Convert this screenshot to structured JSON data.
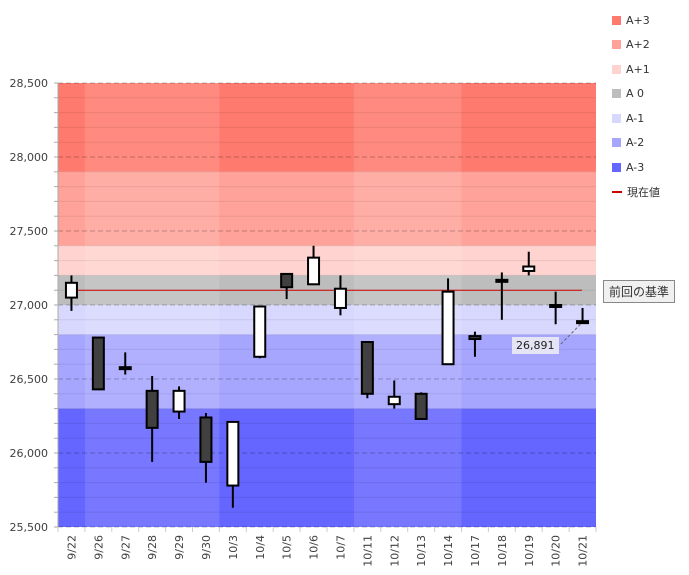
{
  "chart_data": {
    "type": "candlestick",
    "title": "",
    "xlabel": "",
    "ylabel": "",
    "ylim": [
      25500,
      28500
    ],
    "yticks": [
      25500,
      26000,
      26500,
      27000,
      27500,
      28000,
      28500
    ],
    "ytick_labels": [
      "25,500",
      "26,000",
      "26,500",
      "27,000",
      "27,500",
      "28,000",
      "28,500"
    ],
    "categories": [
      "9/22",
      "9/26",
      "9/27",
      "9/28",
      "9/29",
      "9/30",
      "10/3",
      "10/4",
      "10/5",
      "10/6",
      "10/7",
      "10/11",
      "10/12",
      "10/13",
      "10/14",
      "10/17",
      "10/18",
      "10/19",
      "10/20",
      "10/21"
    ],
    "candles": [
      {
        "date": "9/22",
        "open": 27050,
        "high": 27200,
        "low": 26960,
        "close": 27150
      },
      {
        "date": "9/26",
        "open": 26780,
        "high": 26780,
        "low": 26430,
        "close": 26430
      },
      {
        "date": "9/27",
        "open": 26580,
        "high": 26680,
        "low": 26530,
        "close": 26570
      },
      {
        "date": "9/28",
        "open": 26420,
        "high": 26520,
        "low": 25940,
        "close": 26170
      },
      {
        "date": "9/29",
        "open": 26280,
        "high": 26450,
        "low": 26230,
        "close": 26420
      },
      {
        "date": "9/30",
        "open": 26240,
        "high": 26270,
        "low": 25800,
        "close": 25940
      },
      {
        "date": "10/3",
        "open": 25780,
        "high": 26210,
        "low": 25630,
        "close": 26210
      },
      {
        "date": "10/4",
        "open": 26650,
        "high": 26990,
        "low": 26640,
        "close": 26990
      },
      {
        "date": "10/5",
        "open": 27210,
        "high": 27210,
        "low": 27040,
        "close": 27120
      },
      {
        "date": "10/6",
        "open": 27140,
        "high": 27400,
        "low": 27140,
        "close": 27320
      },
      {
        "date": "10/7",
        "open": 26980,
        "high": 27200,
        "low": 26930,
        "close": 27110
      },
      {
        "date": "10/11",
        "open": 26750,
        "high": 26750,
        "low": 26370,
        "close": 26400
      },
      {
        "date": "10/12",
        "open": 26330,
        "high": 26490,
        "low": 26300,
        "close": 26380
      },
      {
        "date": "10/13",
        "open": 26400,
        "high": 26410,
        "low": 26230,
        "close": 26230
      },
      {
        "date": "10/14",
        "open": 26600,
        "high": 27180,
        "low": 26600,
        "close": 27090
      },
      {
        "date": "10/17",
        "open": 26790,
        "high": 26820,
        "low": 26650,
        "close": 26770
      },
      {
        "date": "10/18",
        "open": 27160,
        "high": 27220,
        "low": 26900,
        "close": 27170
      },
      {
        "date": "10/19",
        "open": 27230,
        "high": 27360,
        "low": 27200,
        "close": 27260
      },
      {
        "date": "10/20",
        "open": 26990,
        "high": 27090,
        "low": 26870,
        "close": 27000
      },
      {
        "date": "10/21",
        "open": 26890,
        "high": 26980,
        "low": 26880,
        "close": 26891
      }
    ],
    "bands": [
      {
        "name": "A+3",
        "from": 27900,
        "to": 28500,
        "color": "#ff7a6e"
      },
      {
        "name": "A+2",
        "from": 27400,
        "to": 27900,
        "color": "#ffa39a"
      },
      {
        "name": "A+1",
        "from": 27200,
        "to": 27400,
        "color": "#ffd3cf"
      },
      {
        "name": "A 0",
        "from": 27000,
        "to": 27200,
        "color": "#bdbdbd"
      },
      {
        "name": "A-1",
        "from": 26800,
        "to": 27000,
        "color": "#d8d8ff"
      },
      {
        "name": "A-2",
        "from": 26300,
        "to": 26800,
        "color": "#a6a6ff"
      },
      {
        "name": "A-3",
        "from": 25500,
        "to": 26300,
        "color": "#6565ff"
      }
    ],
    "week_shading_groups": [
      [
        0,
        0
      ],
      [
        1,
        5
      ],
      [
        6,
        10
      ],
      [
        11,
        14
      ],
      [
        15,
        19
      ]
    ],
    "reference_line": {
      "name": "現在値",
      "value": 27100,
      "color": "#cc0000",
      "label": "前回の基準"
    },
    "last_value_label": "26,891",
    "legend": [
      {
        "label": "A+3",
        "color": "#ff7a6e",
        "kind": "box"
      },
      {
        "label": "A+2",
        "color": "#ffa39a",
        "kind": "box"
      },
      {
        "label": "A+1",
        "color": "#ffd3cf",
        "kind": "box"
      },
      {
        "label": "A 0",
        "color": "#bdbdbd",
        "kind": "box"
      },
      {
        "label": "A-1",
        "color": "#d8d8ff",
        "kind": "box"
      },
      {
        "label": "A-2",
        "color": "#a6a6ff",
        "kind": "box"
      },
      {
        "label": "A-3",
        "color": "#6565ff",
        "kind": "box"
      },
      {
        "label": "現在値",
        "color": "#cc0000",
        "kind": "line"
      }
    ],
    "legend_position": "right"
  }
}
